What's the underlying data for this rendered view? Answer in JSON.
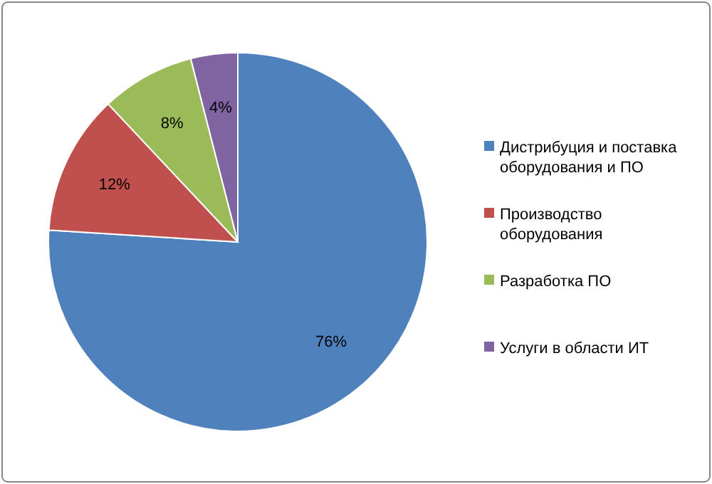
{
  "chart_data": {
    "type": "pie",
    "categories": [
      "Дистрибуция и поставка оборудования и ПО",
      "Производство оборудования",
      "Разработка ПО",
      "Услуги в области ИТ"
    ],
    "values": [
      76,
      12,
      8,
      4
    ],
    "colors": [
      "#4f81bd",
      "#c0504d",
      "#9bbb59",
      "#8064a2"
    ],
    "value_labels": [
      "76%",
      "12%",
      "8%",
      "4%"
    ],
    "legend": "right"
  }
}
